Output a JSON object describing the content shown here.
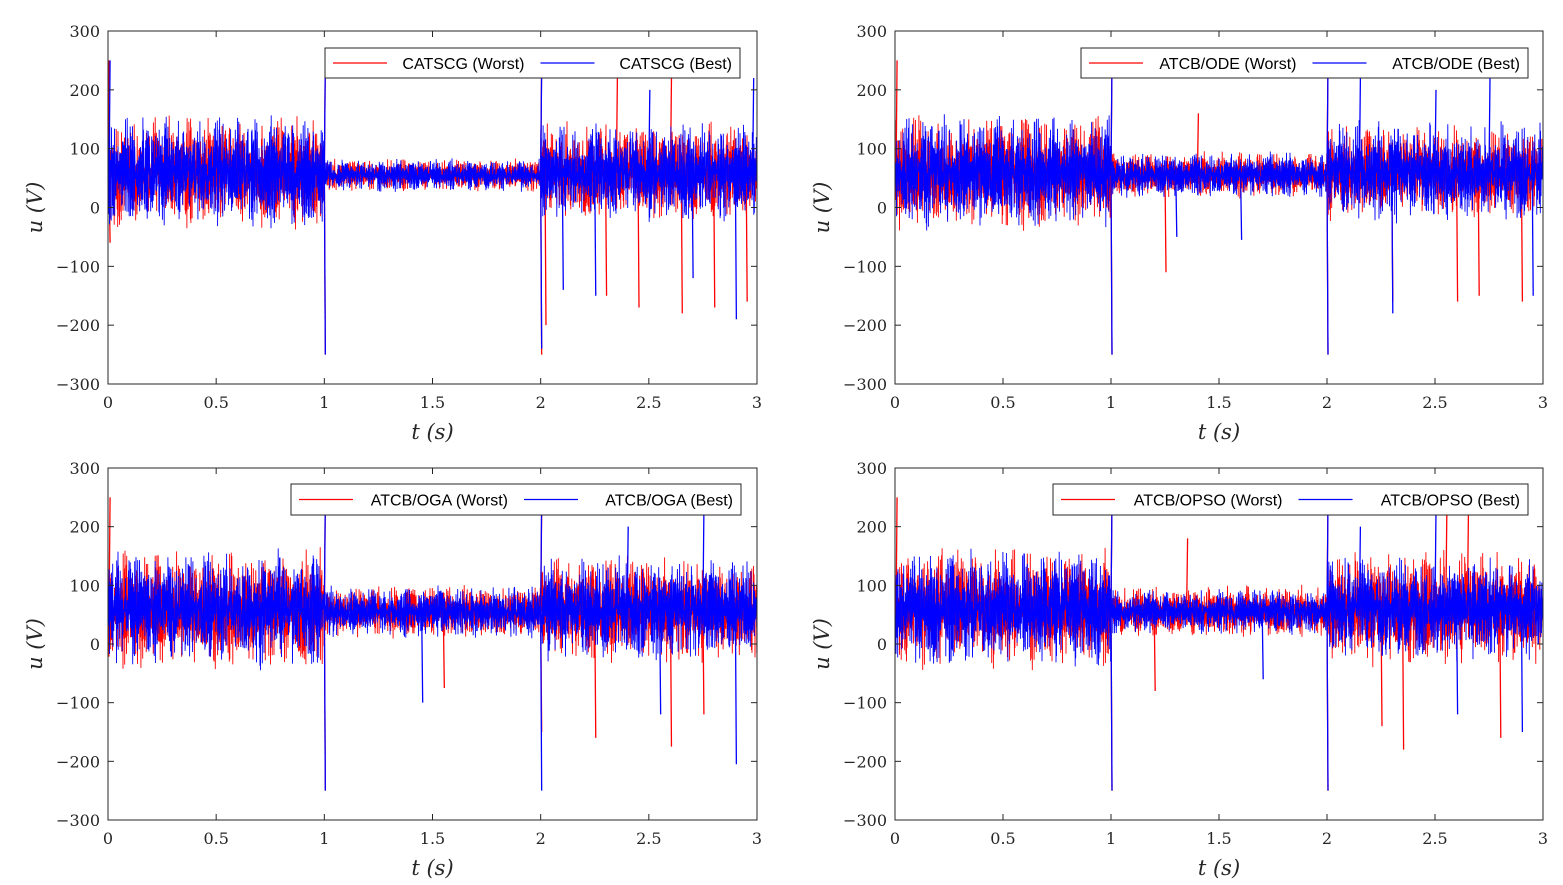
{
  "figure_title": "",
  "chart_data": [
    {
      "type": "line",
      "title": "",
      "xlabel": "t (s)",
      "ylabel": "u (V)",
      "xlim": [
        0,
        3
      ],
      "ylim": [
        -300,
        300
      ],
      "xticks": [
        0,
        0.5,
        1,
        1.5,
        2,
        2.5,
        3
      ],
      "yticks": [
        -300,
        -200,
        -100,
        0,
        100,
        200,
        300
      ],
      "xtick_labels": [
        "0",
        "0.5",
        "1",
        "1.5",
        "2",
        "2.5",
        "3"
      ],
      "ytick_labels": [
        "−300",
        "−200",
        "−100",
        "0",
        "100",
        "200",
        "300"
      ],
      "legend_position": "top-right",
      "series": [
        {
          "name": "CATSCG (Worst)",
          "color": "#ff0000",
          "segments": [
            {
              "t0": 0,
              "t1": 1,
              "center": 60,
              "amplitude": 85
            },
            {
              "t0": 1,
              "t1": 2,
              "center": 55,
              "amplitude": 25
            },
            {
              "t0": 2,
              "t1": 3,
              "center": 60,
              "amplitude": 75
            }
          ],
          "spikes": [
            [
              0.0,
              250
            ],
            [
              0.005,
              -60
            ],
            [
              1.0,
              250
            ],
            [
              1.0,
              -250
            ],
            [
              2.0,
              250
            ],
            [
              2.0,
              -250
            ],
            [
              2.02,
              -200
            ],
            [
              2.3,
              -150
            ],
            [
              2.35,
              220
            ],
            [
              2.45,
              -170
            ],
            [
              2.6,
              220
            ],
            [
              2.65,
              -180
            ],
            [
              2.8,
              -170
            ],
            [
              2.95,
              -160
            ]
          ]
        },
        {
          "name": "CATSCG (Best)",
          "color": "#0000ff",
          "segments": [
            {
              "t0": 0,
              "t1": 1,
              "center": 60,
              "amplitude": 85
            },
            {
              "t0": 1,
              "t1": 2,
              "center": 55,
              "amplitude": 25
            },
            {
              "t0": 2,
              "t1": 3,
              "center": 60,
              "amplitude": 75
            }
          ],
          "spikes": [
            [
              0.005,
              250
            ],
            [
              1.0,
              -250
            ],
            [
              1.0,
              250
            ],
            [
              2.0,
              240
            ],
            [
              2.0,
              -240
            ],
            [
              2.1,
              -140
            ],
            [
              2.25,
              -150
            ],
            [
              2.5,
              200
            ],
            [
              2.7,
              -120
            ],
            [
              2.9,
              -190
            ],
            [
              2.98,
              220
            ]
          ]
        }
      ]
    },
    {
      "type": "line",
      "title": "",
      "xlabel": "t (s)",
      "ylabel": "u (V)",
      "xlim": [
        0,
        3
      ],
      "ylim": [
        -300,
        300
      ],
      "xticks": [
        0,
        0.5,
        1,
        1.5,
        2,
        2.5,
        3
      ],
      "yticks": [
        -300,
        -200,
        -100,
        0,
        100,
        200,
        300
      ],
      "xtick_labels": [
        "0",
        "0.5",
        "1",
        "1.5",
        "2",
        "2.5",
        "3"
      ],
      "ytick_labels": [
        "−300",
        "−200",
        "−100",
        "0",
        "100",
        "200",
        "300"
      ],
      "legend_position": "top-right",
      "series": [
        {
          "name": "ATCB/ODE (Worst)",
          "color": "#ff0000",
          "segments": [
            {
              "t0": 0,
              "t1": 1,
              "center": 60,
              "amplitude": 85
            },
            {
              "t0": 1,
              "t1": 2,
              "center": 55,
              "amplitude": 35
            },
            {
              "t0": 2,
              "t1": 3,
              "center": 60,
              "amplitude": 70
            }
          ],
          "spikes": [
            [
              0.005,
              250
            ],
            [
              1.0,
              -250
            ],
            [
              1.0,
              250
            ],
            [
              1.25,
              -110
            ],
            [
              1.4,
              160
            ],
            [
              2.0,
              250
            ],
            [
              2.0,
              -250
            ],
            [
              2.3,
              -160
            ],
            [
              2.6,
              -160
            ],
            [
              2.7,
              -150
            ],
            [
              2.9,
              -160
            ]
          ]
        },
        {
          "name": "ATCB/ODE (Best)",
          "color": "#0000ff",
          "segments": [
            {
              "t0": 0,
              "t1": 1,
              "center": 60,
              "amplitude": 85
            },
            {
              "t0": 1,
              "t1": 2,
              "center": 55,
              "amplitude": 35
            },
            {
              "t0": 2,
              "t1": 3,
              "center": 60,
              "amplitude": 75
            }
          ],
          "spikes": [
            [
              1.0,
              -250
            ],
            [
              1.0,
              250
            ],
            [
              1.3,
              -50
            ],
            [
              1.6,
              -55
            ],
            [
              2.0,
              240
            ],
            [
              2.0,
              -250
            ],
            [
              2.15,
              220
            ],
            [
              2.3,
              -180
            ],
            [
              2.5,
              200
            ],
            [
              2.75,
              220
            ],
            [
              2.95,
              -150
            ]
          ]
        }
      ]
    },
    {
      "type": "line",
      "title": "",
      "xlabel": "t (s)",
      "ylabel": "u (V)",
      "xlim": [
        0,
        3
      ],
      "ylim": [
        -300,
        300
      ],
      "xticks": [
        0,
        0.5,
        1,
        1.5,
        2,
        2.5,
        3
      ],
      "yticks": [
        -300,
        -200,
        -100,
        0,
        100,
        200,
        300
      ],
      "xtick_labels": [
        "0",
        "0.5",
        "1",
        "1.5",
        "2",
        "2.5",
        "3"
      ],
      "ytick_labels": [
        "−300",
        "−200",
        "−100",
        "0",
        "100",
        "200",
        "300"
      ],
      "legend_position": "top-right",
      "series": [
        {
          "name": "ATCB/OGA (Worst)",
          "color": "#ff0000",
          "segments": [
            {
              "t0": 0,
              "t1": 1,
              "center": 60,
              "amplitude": 90
            },
            {
              "t0": 1,
              "t1": 2,
              "center": 55,
              "amplitude": 40
            },
            {
              "t0": 2,
              "t1": 3,
              "center": 60,
              "amplitude": 80
            }
          ],
          "spikes": [
            [
              0.005,
              250
            ],
            [
              1.0,
              -250
            ],
            [
              1.0,
              250
            ],
            [
              1.55,
              -75
            ],
            [
              2.0,
              230
            ],
            [
              2.0,
              -150
            ],
            [
              2.25,
              -160
            ],
            [
              2.6,
              -175
            ],
            [
              2.75,
              -120
            ],
            [
              3.0,
              230
            ]
          ]
        },
        {
          "name": "ATCB/OGA (Best)",
          "color": "#0000ff",
          "segments": [
            {
              "t0": 0,
              "t1": 1,
              "center": 60,
              "amplitude": 90
            },
            {
              "t0": 1,
              "t1": 2,
              "center": 55,
              "amplitude": 40
            },
            {
              "t0": 2,
              "t1": 3,
              "center": 60,
              "amplitude": 80
            }
          ],
          "spikes": [
            [
              1.0,
              -250
            ],
            [
              1.0,
              250
            ],
            [
              1.45,
              -100
            ],
            [
              2.0,
              250
            ],
            [
              2.0,
              -250
            ],
            [
              2.4,
              200
            ],
            [
              2.55,
              -120
            ],
            [
              2.75,
              230
            ],
            [
              2.9,
              -205
            ],
            [
              3.0,
              240
            ]
          ]
        }
      ]
    },
    {
      "type": "line",
      "title": "",
      "xlabel": "t (s)",
      "ylabel": "u (V)",
      "xlim": [
        0,
        3
      ],
      "ylim": [
        -300,
        300
      ],
      "xticks": [
        0,
        0.5,
        1,
        1.5,
        2,
        2.5,
        3
      ],
      "yticks": [
        -300,
        -200,
        -100,
        0,
        100,
        200,
        300
      ],
      "xtick_labels": [
        "0",
        "0.5",
        "1",
        "1.5",
        "2",
        "2.5",
        "3"
      ],
      "ytick_labels": [
        "−300",
        "−200",
        "−100",
        "0",
        "100",
        "200",
        "300"
      ],
      "legend_position": "top-right",
      "series": [
        {
          "name": "ATCB/OPSO (Worst)",
          "color": "#ff0000",
          "segments": [
            {
              "t0": 0,
              "t1": 1,
              "center": 60,
              "amplitude": 90
            },
            {
              "t0": 1,
              "t1": 2,
              "center": 55,
              "amplitude": 40
            },
            {
              "t0": 2,
              "t1": 3,
              "center": 60,
              "amplitude": 85
            }
          ],
          "spikes": [
            [
              0.005,
              250
            ],
            [
              1.0,
              -250
            ],
            [
              1.0,
              250
            ],
            [
              1.2,
              -80
            ],
            [
              1.35,
              180
            ],
            [
              2.0,
              250
            ],
            [
              2.0,
              -250
            ],
            [
              2.25,
              -140
            ],
            [
              2.35,
              -180
            ],
            [
              2.55,
              220
            ],
            [
              2.65,
              220
            ],
            [
              2.8,
              -160
            ]
          ]
        },
        {
          "name": "ATCB/OPSO (Best)",
          "color": "#0000ff",
          "segments": [
            {
              "t0": 0,
              "t1": 1,
              "center": 60,
              "amplitude": 90
            },
            {
              "t0": 1,
              "t1": 2,
              "center": 55,
              "amplitude": 35
            },
            {
              "t0": 2,
              "t1": 3,
              "center": 60,
              "amplitude": 80
            }
          ],
          "spikes": [
            [
              1.0,
              -250
            ],
            [
              1.0,
              250
            ],
            [
              1.7,
              -60
            ],
            [
              2.0,
              240
            ],
            [
              2.0,
              -250
            ],
            [
              2.15,
              200
            ],
            [
              2.5,
              230
            ],
            [
              2.6,
              -120
            ],
            [
              2.9,
              -150
            ]
          ]
        }
      ]
    }
  ]
}
